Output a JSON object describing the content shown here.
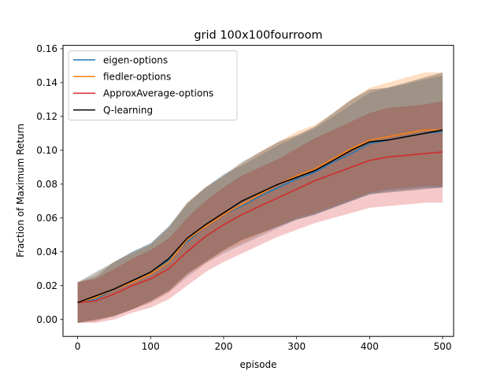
{
  "chart_data": {
    "type": "line",
    "title": "grid  100x100fourroom",
    "xlabel": "episode",
    "ylabel": "Fraction of Maximum Return",
    "xlim": [
      -20,
      515
    ],
    "ylim": [
      -0.01,
      0.162
    ],
    "xticks": [
      0,
      100,
      200,
      300,
      400,
      500
    ],
    "yticks": [
      0.0,
      0.02,
      0.04,
      0.06,
      0.08,
      0.1,
      0.12,
      0.14,
      0.16
    ],
    "ytick_labels": [
      "0.00",
      "0.02",
      "0.04",
      "0.06",
      "0.08",
      "0.10",
      "0.12",
      "0.14",
      "0.16"
    ],
    "grid": false,
    "legend_position": "upper-left",
    "x": [
      0,
      25,
      50,
      75,
      100,
      125,
      150,
      175,
      200,
      225,
      250,
      275,
      300,
      325,
      350,
      375,
      400,
      425,
      450,
      475,
      500
    ],
    "series": [
      {
        "name": "eigen-options",
        "color": "#1f77b4",
        "values": [
          0.01,
          0.012,
          0.018,
          0.023,
          0.027,
          0.035,
          0.046,
          0.055,
          0.062,
          0.067,
          0.073,
          0.078,
          0.083,
          0.087,
          0.093,
          0.098,
          0.104,
          0.106,
          0.108,
          0.11,
          0.111
        ],
        "lower": [
          -0.002,
          -0.001,
          0.002,
          0.006,
          0.01,
          0.016,
          0.025,
          0.033,
          0.039,
          0.044,
          0.049,
          0.054,
          0.059,
          0.062,
          0.066,
          0.07,
          0.074,
          0.076,
          0.077,
          0.078,
          0.078
        ],
        "upper": [
          0.022,
          0.025,
          0.034,
          0.04,
          0.045,
          0.055,
          0.068,
          0.078,
          0.086,
          0.091,
          0.097,
          0.103,
          0.108,
          0.113,
          0.12,
          0.127,
          0.134,
          0.137,
          0.139,
          0.142,
          0.144
        ]
      },
      {
        "name": "fiedler-options",
        "color": "#ff7f0e",
        "values": [
          0.01,
          0.013,
          0.018,
          0.022,
          0.027,
          0.034,
          0.047,
          0.055,
          0.062,
          0.068,
          0.074,
          0.08,
          0.085,
          0.089,
          0.095,
          0.101,
          0.106,
          0.108,
          0.11,
          0.112,
          0.112
        ],
        "lower": [
          -0.002,
          -0.001,
          0.002,
          0.006,
          0.01,
          0.016,
          0.026,
          0.033,
          0.04,
          0.045,
          0.05,
          0.055,
          0.06,
          0.063,
          0.067,
          0.071,
          0.075,
          0.077,
          0.078,
          0.079,
          0.079
        ],
        "upper": [
          0.022,
          0.026,
          0.034,
          0.039,
          0.044,
          0.054,
          0.069,
          0.078,
          0.085,
          0.092,
          0.099,
          0.105,
          0.111,
          0.115,
          0.122,
          0.13,
          0.137,
          0.14,
          0.143,
          0.146,
          0.146
        ]
      },
      {
        "name": "ApproxAverage-options",
        "color": "#d62728",
        "values": [
          0.01,
          0.011,
          0.015,
          0.02,
          0.024,
          0.03,
          0.04,
          0.049,
          0.056,
          0.062,
          0.067,
          0.072,
          0.077,
          0.082,
          0.086,
          0.09,
          0.094,
          0.096,
          0.097,
          0.098,
          0.099
        ],
        "lower": [
          -0.002,
          -0.002,
          0.0,
          0.004,
          0.007,
          0.012,
          0.02,
          0.028,
          0.034,
          0.039,
          0.044,
          0.049,
          0.053,
          0.057,
          0.06,
          0.063,
          0.066,
          0.067,
          0.068,
          0.069,
          0.069
        ],
        "upper": [
          0.022,
          0.024,
          0.03,
          0.036,
          0.041,
          0.048,
          0.06,
          0.07,
          0.078,
          0.085,
          0.09,
          0.095,
          0.101,
          0.107,
          0.112,
          0.117,
          0.122,
          0.125,
          0.126,
          0.127,
          0.129
        ]
      },
      {
        "name": "Q-learning",
        "color": "#000000",
        "values": [
          0.01,
          0.014,
          0.018,
          0.023,
          0.028,
          0.036,
          0.048,
          0.056,
          0.063,
          0.07,
          0.075,
          0.08,
          0.084,
          0.088,
          0.094,
          0.1,
          0.105,
          0.106,
          0.108,
          0.11,
          0.112
        ],
        "lower": [
          -0.002,
          0.0,
          0.002,
          0.006,
          0.011,
          0.017,
          0.027,
          0.034,
          0.041,
          0.047,
          0.051,
          0.055,
          0.059,
          0.062,
          0.066,
          0.07,
          0.074,
          0.075,
          0.076,
          0.077,
          0.078
        ],
        "upper": [
          0.022,
          0.028,
          0.034,
          0.04,
          0.045,
          0.055,
          0.069,
          0.078,
          0.085,
          0.093,
          0.099,
          0.105,
          0.109,
          0.114,
          0.122,
          0.13,
          0.136,
          0.137,
          0.14,
          0.143,
          0.146
        ]
      }
    ]
  }
}
